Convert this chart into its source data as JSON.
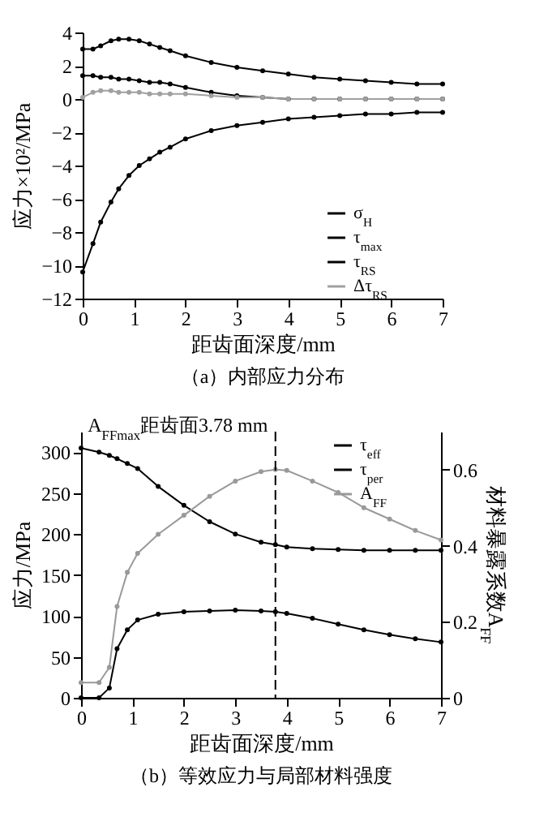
{
  "chart_data": [
    {
      "type": "line",
      "title": "（a）内部应力分布",
      "xlabel": "距齿面深度/mm",
      "ylabel": "应力×10²/MPa",
      "x": [
        0,
        0.2,
        0.35,
        0.55,
        0.7,
        0.9,
        1.1,
        1.3,
        1.5,
        1.7,
        2,
        2.5,
        3,
        3.5,
        4,
        4.5,
        5,
        5.5,
        6,
        6.5,
        7
      ],
      "series": [
        {
          "name": "σ$_{H}$",
          "color": "#000000",
          "values": [
            -10.4,
            -8.7,
            -7.4,
            -6.2,
            -5.4,
            -4.6,
            -4.0,
            -3.6,
            -3.2,
            -2.9,
            -2.4,
            -1.9,
            -1.6,
            -1.4,
            -1.2,
            -1.1,
            -1.0,
            -0.9,
            -0.9,
            -0.8,
            -0.8
          ]
        },
        {
          "name": "τ$_{max}$",
          "color": "#000000",
          "values": [
            3.0,
            3.0,
            3.2,
            3.5,
            3.6,
            3.6,
            3.5,
            3.3,
            3.1,
            2.9,
            2.6,
            2.2,
            1.9,
            1.7,
            1.5,
            1.3,
            1.2,
            1.1,
            1.0,
            0.9,
            0.9
          ]
        },
        {
          "name": "τ$_{RS}$",
          "color": "#000000",
          "values": [
            1.4,
            1.4,
            1.3,
            1.3,
            1.2,
            1.2,
            1.1,
            1.0,
            1.0,
            0.9,
            0.7,
            0.4,
            0.2,
            0.1,
            0,
            0,
            0,
            0,
            0,
            0,
            0
          ]
        },
        {
          "name": "Δτ$_{RS}$",
          "color": "#a0a0a0",
          "values": [
            0.1,
            0.4,
            0.5,
            0.5,
            0.4,
            0.4,
            0.4,
            0.3,
            0.3,
            0.3,
            0.3,
            0.2,
            0.1,
            0.1,
            0,
            0,
            0,
            0,
            0,
            0,
            0
          ]
        }
      ],
      "xlim": [
        0,
        7
      ],
      "xticks": [
        0,
        1,
        2,
        3,
        4,
        5,
        6,
        7
      ],
      "ylim": [
        -12,
        4
      ],
      "yticks": [
        -12,
        -10,
        -8,
        -6,
        -4,
        -2,
        0,
        2,
        4
      ],
      "grid": false,
      "legend": "bottom right",
      "marker": "circle",
      "line_style": "solid"
    },
    {
      "type": "line",
      "title": "（b）等效应力与局部材料强度",
      "xlabel": "距齿面深度/mm",
      "ylabel": "应力/MPa",
      "y2label": "材料暴露系数A$_{FF}$",
      "x": [
        0,
        0.35,
        0.55,
        0.7,
        0.9,
        1.1,
        1.5,
        2,
        2.5,
        3,
        3.5,
        3.78,
        4,
        4.5,
        5,
        5.5,
        6,
        6.5,
        7
      ],
      "series": [
        {
          "name": "τ$_{eff}$",
          "color": "#000000",
          "values": [
            305,
            300,
            296,
            292,
            286,
            280,
            258,
            235,
            215,
            200,
            190,
            187,
            184,
            182,
            181,
            180,
            180,
            180,
            180
          ]
        },
        {
          "name": "τ$_{per}$",
          "color": "#000000",
          "values": [
            0,
            0,
            12,
            60,
            83,
            95,
            102,
            105,
            106,
            107,
            106,
            105,
            103,
            97,
            90,
            83,
            77,
            72,
            68
          ]
        },
        {
          "name": "A$_{FF}$",
          "color": "#999999",
          "axis": "y2",
          "values": [
            0.04,
            0.04,
            0.08,
            0.24,
            0.33,
            0.38,
            0.43,
            0.48,
            0.53,
            0.57,
            0.595,
            0.6,
            0.598,
            0.57,
            0.54,
            0.5,
            0.47,
            0.44,
            0.415
          ]
        }
      ],
      "xlim": [
        0,
        7
      ],
      "xticks": [
        0,
        1,
        2,
        3,
        4,
        5,
        6,
        7
      ],
      "ylim": [
        0,
        325
      ],
      "yticks": [
        0,
        50,
        100,
        150,
        200,
        250,
        300
      ],
      "y2lim": [
        0,
        0.7
      ],
      "y2ticks": [
        0,
        0.2,
        0.4,
        0.6
      ],
      "ref_lines": [
        {
          "axis": "x",
          "value": 3.78,
          "label": "A$_{FFmax}$距齿面3.78 mm",
          "line_style": "dashed"
        }
      ],
      "grid": false,
      "legend": "top right",
      "marker": "circle",
      "line_style": "solid"
    }
  ]
}
